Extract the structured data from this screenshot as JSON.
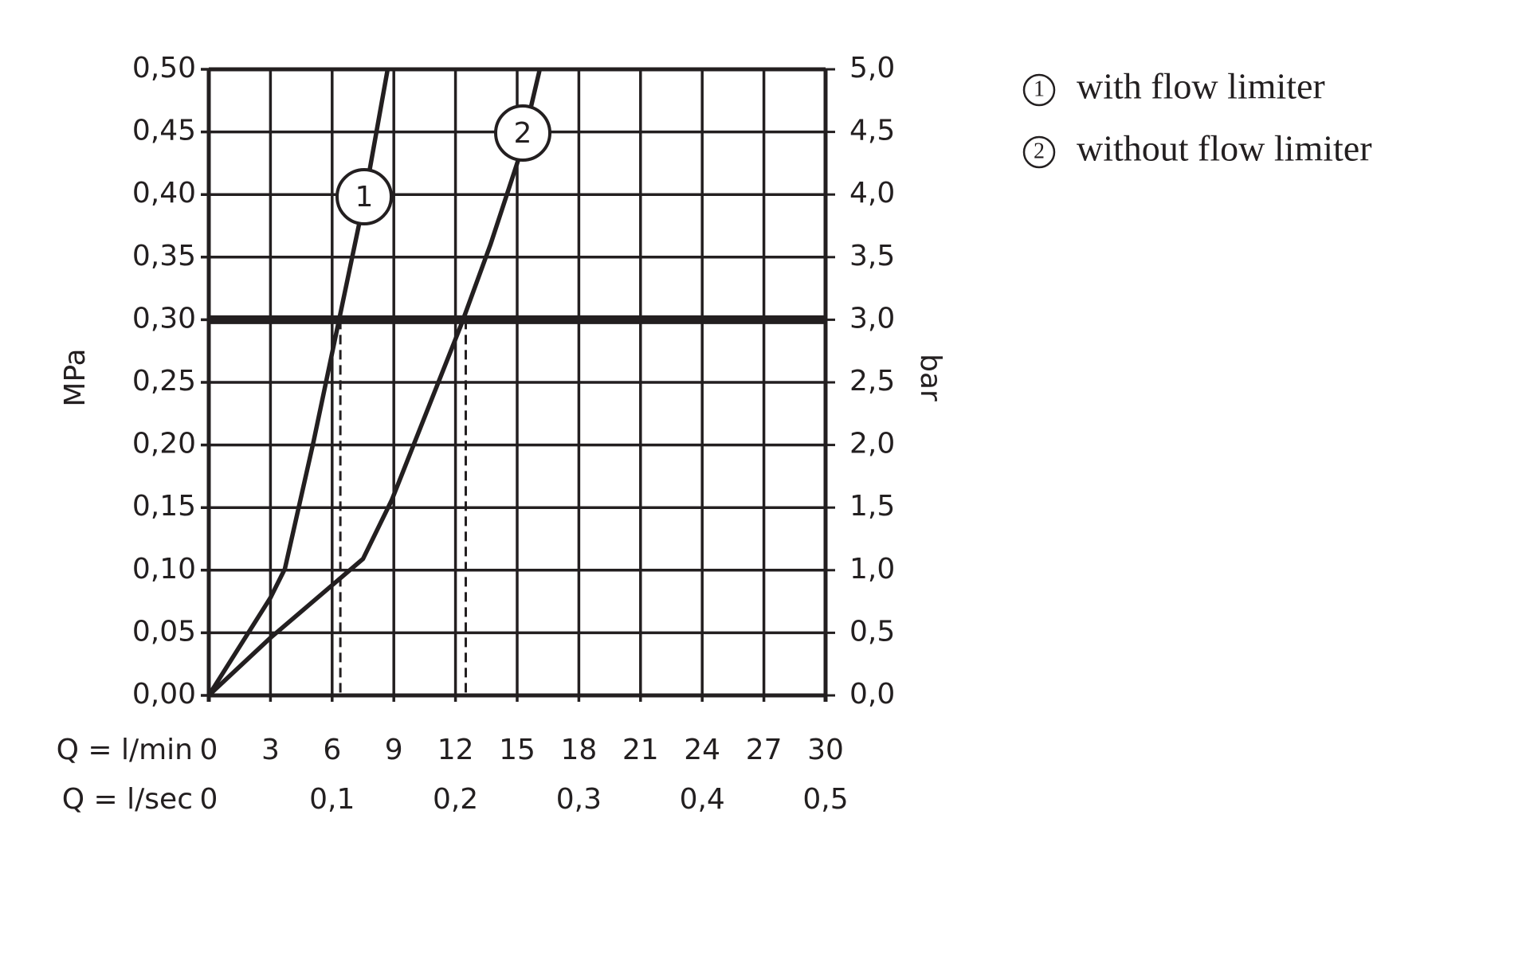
{
  "chart_data": {
    "type": "line",
    "xlabel": "Q = l/min",
    "x2label": "Q = l/sec",
    "ylabel": "MPa",
    "y2label": "bar",
    "xlim": [
      0,
      30
    ],
    "xticks": [
      0,
      3,
      6,
      9,
      12,
      15,
      18,
      21,
      24,
      27,
      30
    ],
    "x2lim": [
      0,
      0.5
    ],
    "x2ticks": [
      0,
      {
        "value": 0.1,
        "label": "0,1"
      },
      {
        "value": 0.2,
        "label": "0,2"
      },
      {
        "value": 0.3,
        "label": "0,3"
      },
      {
        "value": 0.4,
        "label": "0,4"
      },
      {
        "value": 0.5,
        "label": "0,5"
      }
    ],
    "ylim": [
      0,
      0.5
    ],
    "yticks": [
      {
        "value": 0,
        "label": "0,00"
      },
      {
        "value": 0.05,
        "label": "0,05"
      },
      {
        "value": 0.1,
        "label": "0,10"
      },
      {
        "value": 0.15,
        "label": "0,15"
      },
      {
        "value": 0.2,
        "label": "0,20"
      },
      {
        "value": 0.25,
        "label": "0,25"
      },
      {
        "value": 0.3,
        "label": "0,30"
      },
      {
        "value": 0.35,
        "label": "0,35"
      },
      {
        "value": 0.4,
        "label": "0,40"
      },
      {
        "value": 0.45,
        "label": "0,45"
      },
      {
        "value": 0.5,
        "label": "0,50"
      }
    ],
    "y2lim": [
      0,
      5
    ],
    "y2ticks": [
      {
        "value": 0,
        "label": "0,0"
      },
      {
        "value": 0.5,
        "label": "0,5"
      },
      {
        "value": 1,
        "label": "1,0"
      },
      {
        "value": 1.5,
        "label": "1,5"
      },
      {
        "value": 2,
        "label": "2,0"
      },
      {
        "value": 2.5,
        "label": "2,5"
      },
      {
        "value": 3,
        "label": "3,0"
      },
      {
        "value": 3.5,
        "label": "3,5"
      },
      {
        "value": 4,
        "label": "4,0"
      },
      {
        "value": 4.5,
        "label": "4,5"
      },
      {
        "value": 5,
        "label": "5,0"
      }
    ],
    "grid": true,
    "color": "#231f20",
    "hline": 0.3,
    "vlines": [
      6.4,
      12.5
    ],
    "series": [
      {
        "name": "with flow limiter",
        "marker": "1",
        "color": "#231f20",
        "x": [
          0,
          3,
          3.7,
          5.1,
          6.3,
          7.6,
          8.7
        ],
        "values": [
          0,
          0.078,
          0.101,
          0.203,
          0.297,
          0.399,
          0.5
        ]
      },
      {
        "name": "without flow limiter",
        "marker": "2",
        "color": "#231f20",
        "x": [
          0,
          3,
          7.5,
          8.9,
          12.3,
          13.7,
          15.1,
          16.1
        ],
        "values": [
          0,
          0.046,
          0.109,
          0.156,
          0.297,
          0.36,
          0.43,
          0.5
        ]
      }
    ]
  }
}
